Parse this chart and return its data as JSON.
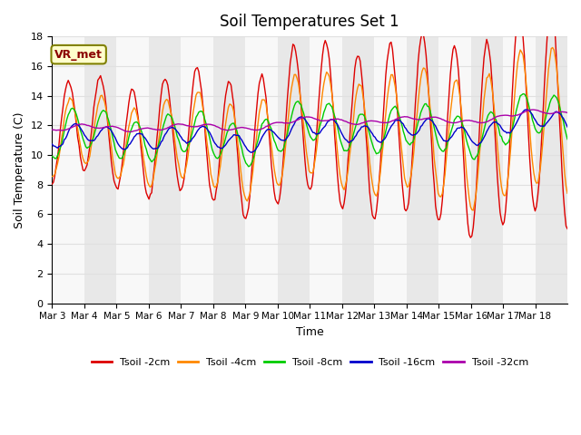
{
  "title": "Soil Temperatures Set 1",
  "xlabel": "Time",
  "ylabel": "Soil Temperature (C)",
  "ylim": [
    0,
    18
  ],
  "yticks": [
    0,
    2,
    4,
    6,
    8,
    10,
    12,
    14,
    16,
    18
  ],
  "xtick_positions": [
    0,
    1,
    2,
    3,
    4,
    5,
    6,
    7,
    8,
    9,
    10,
    11,
    12,
    13,
    14,
    15
  ],
  "xtick_labels": [
    "Mar 3",
    "Mar 4",
    "Mar 5",
    "Mar 6",
    "Mar 7",
    "Mar 8",
    "Mar 9",
    "Mar 10",
    "Mar 11",
    "Mar 12",
    "Mar 13",
    "Mar 14",
    "Mar 15",
    "Mar 16",
    "Mar 17",
    "Mar 18"
  ],
  "annotation_text": "VR_met",
  "annotation_bg": "#ffffcc",
  "annotation_border": "#808000",
  "series_colors": {
    "2cm": "#dd0000",
    "4cm": "#ff8800",
    "8cm": "#00cc00",
    "16cm": "#0000cc",
    "32cm": "#aa00aa"
  },
  "legend_labels": [
    "Tsoil -2cm",
    "Tsoil -4cm",
    "Tsoil -8cm",
    "Tsoil -16cm",
    "Tsoil -32cm"
  ],
  "background_color": "#ffffff",
  "grid_color": "#e0e0e0",
  "facecolor_dark": "#e8e8e8",
  "facecolor_light": "#f8f8f8"
}
